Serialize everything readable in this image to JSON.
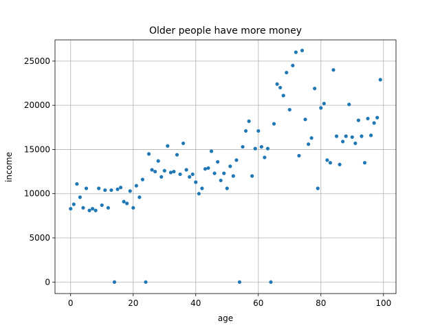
{
  "chart_data": {
    "type": "scatter",
    "title": "Older people have more money",
    "xlabel": "age",
    "ylabel": "income",
    "xlim": [
      -5,
      104
    ],
    "ylim": [
      -1300,
      27400
    ],
    "xticks": [
      0,
      20,
      40,
      60,
      80,
      100
    ],
    "yticks": [
      0,
      5000,
      10000,
      15000,
      20000,
      25000
    ],
    "grid": true,
    "marker_color": "#1f77b4",
    "x": [
      0,
      1,
      2,
      3,
      4,
      5,
      6,
      7,
      8,
      9,
      10,
      11,
      12,
      13,
      14,
      15,
      16,
      17,
      18,
      19,
      20,
      21,
      22,
      23,
      24,
      25,
      26,
      27,
      28,
      29,
      30,
      31,
      32,
      33,
      34,
      35,
      36,
      37,
      38,
      39,
      40,
      41,
      42,
      43,
      44,
      45,
      46,
      47,
      48,
      49,
      50,
      51,
      52,
      53,
      54,
      55,
      56,
      57,
      58,
      59,
      60,
      61,
      62,
      63,
      64,
      65,
      66,
      67,
      68,
      69,
      70,
      71,
      72,
      73,
      74,
      75,
      76,
      77,
      78,
      79,
      80,
      81,
      82,
      83,
      84,
      85,
      86,
      87,
      88,
      89,
      90,
      91,
      92,
      93,
      94,
      95,
      96,
      97,
      98,
      99
    ],
    "y": [
      8300,
      8800,
      11100,
      9600,
      8400,
      10600,
      8100,
      8300,
      8100,
      10600,
      8700,
      10400,
      8400,
      10400,
      0,
      10500,
      10700,
      9100,
      8900,
      10300,
      8400,
      10900,
      9600,
      11600,
      0,
      14500,
      12700,
      12500,
      13700,
      11900,
      12600,
      15400,
      12400,
      12500,
      14400,
      12200,
      15700,
      12700,
      11900,
      12200,
      11300,
      10000,
      10600,
      12800,
      12900,
      14800,
      12300,
      13600,
      11500,
      12300,
      10600,
      13100,
      12000,
      13800,
      0,
      15300,
      17100,
      18200,
      12000,
      15100,
      17100,
      15300,
      14100,
      15100,
      0,
      17900,
      22400,
      22000,
      21100,
      23700,
      19500,
      24500,
      26000,
      14300,
      26200,
      18400,
      15600,
      16300,
      21900,
      10600,
      19700,
      20200,
      13800,
      13500,
      24000,
      16500,
      13300,
      15900,
      16500,
      20100,
      16400,
      15700,
      18300,
      16500,
      13500,
      18500,
      16600,
      18000,
      18600,
      22900
    ]
  }
}
